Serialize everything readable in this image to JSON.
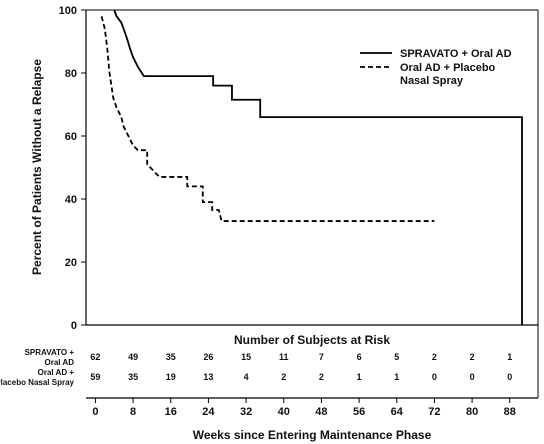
{
  "chart_data": {
    "type": "line",
    "xlabel": "Weeks since Entering Maintenance Phase",
    "ylabel": "Percent of Patients Without a Relapse",
    "xlim": [
      -2,
      94
    ],
    "ylim": [
      0,
      100
    ],
    "x_ticks": [
      0,
      8,
      16,
      24,
      32,
      40,
      48,
      56,
      64,
      72,
      80,
      88
    ],
    "y_ticks": [
      0,
      20,
      40,
      60,
      80,
      100
    ],
    "legend_position": "top-right",
    "series": [
      {
        "name": "SPRAVATO + Oral AD",
        "style": "solid",
        "color": "#000000",
        "points": [
          [
            4,
            100
          ],
          [
            4.5,
            98
          ],
          [
            5.5,
            96
          ],
          [
            6,
            94
          ],
          [
            6.7,
            91
          ],
          [
            7.3,
            88
          ],
          [
            8,
            85
          ],
          [
            9,
            82
          ],
          [
            10.3,
            79
          ],
          [
            25,
            79
          ],
          [
            25,
            76
          ],
          [
            29,
            76
          ],
          [
            29,
            71.5
          ],
          [
            35,
            71.5
          ],
          [
            35,
            66
          ],
          [
            90.6,
            66
          ],
          [
            90.6,
            0
          ]
        ]
      },
      {
        "name_line1": "Oral AD + Placebo",
        "name_line2": "Nasal Spray",
        "style": "dashed",
        "color": "#000000",
        "points": [
          [
            1.3,
            98
          ],
          [
            2,
            94
          ],
          [
            2.5,
            88
          ],
          [
            3,
            80
          ],
          [
            3.8,
            72
          ],
          [
            4.5,
            69
          ],
          [
            5.5,
            66
          ],
          [
            6,
            63
          ],
          [
            7,
            60
          ],
          [
            8,
            57
          ],
          [
            9,
            55.5
          ],
          [
            11,
            55.5
          ],
          [
            11,
            51
          ],
          [
            12.3,
            49
          ],
          [
            13.6,
            47
          ],
          [
            19.5,
            47
          ],
          [
            19.5,
            44
          ],
          [
            22.8,
            44
          ],
          [
            22.8,
            39
          ],
          [
            24.8,
            39
          ],
          [
            24.8,
            36.5
          ],
          [
            26.2,
            36.5
          ],
          [
            26.8,
            33
          ],
          [
            72,
            33
          ]
        ]
      }
    ],
    "risk_table": {
      "title": "Number of Subjects at Risk",
      "rows": [
        {
          "label_line1": "SPRAVATO +",
          "label_line2": "Oral AD",
          "values": [
            "62",
            "49",
            "35",
            "26",
            "15",
            "11",
            "7",
            "6",
            "5",
            "2",
            "2",
            "1"
          ]
        },
        {
          "label_line1": "Oral AD +",
          "label_line2": "Placebo Nasal Spray",
          "values": [
            "59",
            "35",
            "19",
            "13",
            "4",
            "2",
            "2",
            "1",
            "1",
            "0",
            "0",
            "0"
          ]
        }
      ]
    }
  }
}
